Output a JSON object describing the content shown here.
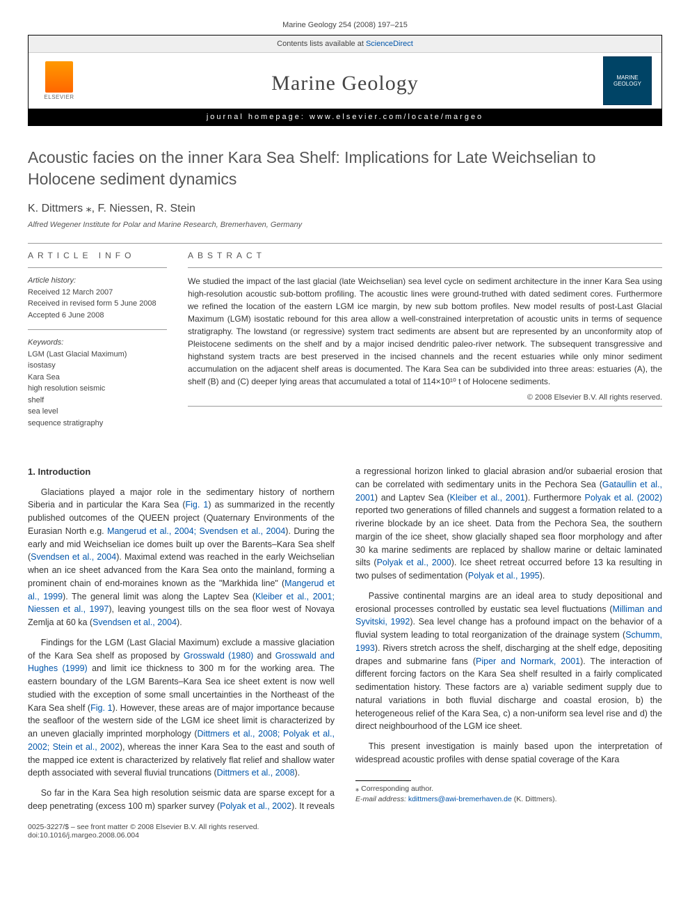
{
  "journal_ref": "Marine Geology 254 (2008) 197–215",
  "header": {
    "contents_list_prefix": "Contents lists available at ",
    "contents_list_link": "ScienceDirect",
    "journal_title": "Marine Geology",
    "homepage_prefix": "journal homepage: ",
    "homepage_url": "www.elsevier.com/locate/margeo",
    "publisher_logo_text": "ELSEVIER",
    "cover_logo_line1": "MARINE",
    "cover_logo_line2": "GEOLOGY"
  },
  "title": "Acoustic facies on the inner Kara Sea Shelf: Implications for Late Weichselian to Holocene sediment dynamics",
  "authors": "K. Dittmers ⁎, F. Niessen, R. Stein",
  "affiliation": "Alfred Wegener Institute for Polar and Marine Research, Bremerhaven, Germany",
  "info_label": "ARTICLE INFO",
  "abstract_label": "ABSTRACT",
  "history_heading": "Article history:",
  "history_received": "Received 12 March 2007",
  "history_revised": "Received in revised form 5 June 2008",
  "history_accepted": "Accepted 6 June 2008",
  "keywords_heading": "Keywords:",
  "keywords": [
    "LGM (Last Glacial Maximum)",
    "isostasy",
    "Kara Sea",
    "high resolution seismic",
    "shelf",
    "sea level",
    "sequence stratigraphy"
  ],
  "abstract": "We studied the impact of the last glacial (late Weichselian) sea level cycle on sediment architecture in the inner Kara Sea using high-resolution acoustic sub-bottom profiling. The acoustic lines were ground-truthed with dated sediment cores. Furthermore we refined the location of the eastern LGM ice margin, by new sub bottom profiles. New model results of post-Last Glacial Maximum (LGM) isostatic rebound for this area allow a well-constrained interpretation of acoustic units in terms of sequence stratigraphy. The lowstand (or regressive) system tract sediments are absent but are represented by an unconformity atop of Pleistocene sediments on the shelf and by a major incised dendritic paleo-river network. The subsequent transgressive and highstand system tracts are best preserved in the incised channels and the recent estuaries while only minor sediment accumulation on the adjacent shelf areas is documented. The Kara Sea can be subdivided into three areas: estuaries (A), the shelf (B) and (C) deeper lying areas that accumulated a total of 114×10¹⁰ t of Holocene sediments.",
  "copyright": "© 2008 Elsevier B.V. All rights reserved.",
  "section1_heading": "1. Introduction",
  "p1a": "Glaciations played a major role in the sedimentary history of northern Siberia and in particular the Kara Sea (",
  "p1_fig1": "Fig. 1",
  "p1b": ") as summarized in the recently published outcomes of the QUEEN project (Quaternary Environments of the Eurasian North e.g. ",
  "p1_ref1": "Mangerud et al., 2004; Svendsen et al., 2004",
  "p1c": "). During the early and mid Weichselian ice domes built up over the Barents–Kara Sea shelf (",
  "p1_ref2": "Svendsen et al., 2004",
  "p1d": "). Maximal extend was reached in the early Weichselian when an ice sheet advanced from the Kara Sea onto the mainland, forming a prominent chain of end-moraines known as the \"Markhida line\" (",
  "p1_ref3": "Mangerud et al., 1999",
  "p1e": "). The general limit was along the Laptev Sea (",
  "p1_ref4": "Kleiber et al., 2001; Niessen et al., 1997",
  "p1f": "), leaving youngest tills on the sea floor west of Novaya Zemlja at 60 ka (",
  "p1_ref5": "Svendsen et al., 2004",
  "p1g": ").",
  "p2a": "Findings for the LGM (Last Glacial Maximum) exclude a massive glaciation of the Kara Sea shelf as proposed by ",
  "p2_ref1": "Grosswald (1980)",
  "p2b": " and ",
  "p2_ref2": "Grosswald and Hughes (1999)",
  "p2c": " and limit ice thickness to 300 m for the working area. The eastern boundary of the LGM Barents–Kara Sea ice sheet extent is now well studied with the exception of some small uncertainties in the Northeast of the Kara Sea shelf (",
  "p2_fig1": "Fig. 1",
  "p2d": "). However, these areas are of major importance because the seafloor of the western side of the LGM ice sheet limit is characterized by an uneven glacially imprinted morphology (",
  "p2_ref3": "Dittmers et al., 2008; Polyak et al., 2002; Stein et al., 2002",
  "p2e": "), whereas the inner Kara Sea to the east and south of the mapped ice extent is characterized by relatively flat relief ",
  "p2f": "and shallow water depth associated with several fluvial truncations (",
  "p2_ref4": "Dittmers et al., 2008",
  "p2g": ").",
  "p3a": "So far in the Kara Sea high resolution seismic data are sparse except for a deep penetrating (excess 100 m) sparker survey (",
  "p3_ref1": "Polyak et al., 2002",
  "p3b": "). It reveals a regressional horizon linked to glacial abrasion and/or subaerial erosion that can be correlated with sedimentary units in the Pechora Sea (",
  "p3_ref2": "Gataullin et al., 2001",
  "p3c": ") and Laptev Sea (",
  "p3_ref3": "Kleiber et al., 2001",
  "p3d": "). Furthermore ",
  "p3_ref4": "Polyak et al. (2002)",
  "p3e": " reported two generations of filled channels and suggest a formation related to a riverine blockade by an ice sheet. Data from the Pechora Sea, the southern margin of the ice sheet, show glacially shaped sea floor morphology and after 30 ka marine sediments are replaced by shallow marine or deltaic laminated silts (",
  "p3_ref5": "Polyak et al., 2000",
  "p3f": "). Ice sheet retreat occurred before 13 ka resulting in two pulses of sedimentation (",
  "p3_ref6": "Polyak et al., 1995",
  "p3g": ").",
  "p4a": "Passive continental margins are an ideal area to study depositional and erosional processes controlled by eustatic sea level fluctuations (",
  "p4_ref1": "Milliman and Syvitski, 1992",
  "p4b": "). Sea level change has a profound impact on the behavior of a fluvial system leading to total reorganization of the drainage system (",
  "p4_ref2": "Schumm, 1993",
  "p4c": "). Rivers stretch across the shelf, discharging at the shelf edge, depositing drapes and submarine fans (",
  "p4_ref3": "Piper and Normark, 2001",
  "p4d": "). The interaction of different forcing factors on the Kara Sea shelf resulted in a fairly complicated sedimentation history. These factors are a) variable sediment supply due to natural variations in both fluvial discharge and coastal erosion, b) the heterogeneous relief of the Kara Sea, c) a non-uniform sea level rise and d) the direct neighbourhood of the LGM ice sheet.",
  "p5": "This present investigation is mainly based upon the interpretation of widespread acoustic profiles with dense spatial coverage of the Kara",
  "footnote_star": "⁎ Corresponding author.",
  "footnote_email_label": "E-mail address: ",
  "footnote_email": "kdittmers@awi-bremerhaven.de",
  "footnote_email_suffix": " (K. Dittmers).",
  "footer_issn": "0025-3227/$ – see front matter © 2008 Elsevier B.V. All rights reserved.",
  "footer_doi": "doi:10.1016/j.margeo.2008.06.004"
}
